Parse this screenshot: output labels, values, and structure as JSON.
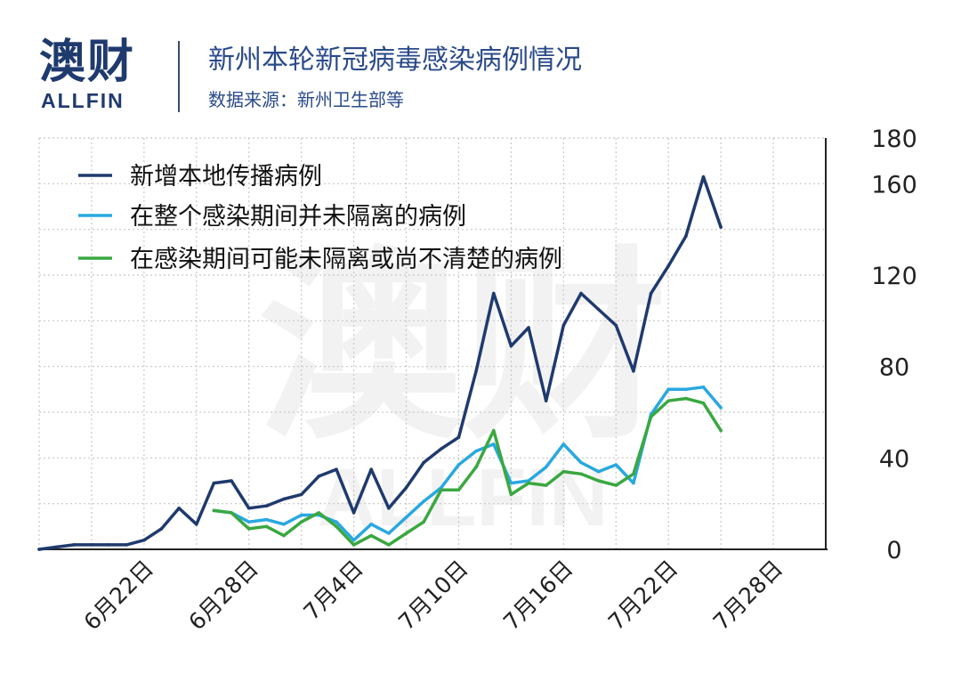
{
  "brand": {
    "logo_cn": "澳财",
    "logo_en": "ALLFIN"
  },
  "header": {
    "title": "新州本轮新冠病毒感染病例情况",
    "subtitle": "数据来源：新州卫生部等"
  },
  "colors": {
    "brand": "#1f3a6e",
    "grid": "#c8c8c8"
  },
  "chart_data": {
    "type": "line",
    "title": "新州本轮新冠病毒感染病例情况",
    "xlabel": "",
    "ylabel": "",
    "x_tick_labels": [
      "6月22日",
      "6月28日",
      "7月4日",
      "7月10日",
      "7月16日",
      "7月22日",
      "7月28日"
    ],
    "y_ticks": [
      0,
      40,
      80,
      120,
      160,
      180
    ],
    "ylim": [
      0,
      180
    ],
    "grid": true,
    "legend_position": "top-left",
    "y_axis_side": "right",
    "x_dates": [
      "6/16",
      "6/17",
      "6/18",
      "6/19",
      "6/20",
      "6/21",
      "6/22",
      "6/23",
      "6/24",
      "6/25",
      "6/26",
      "6/27",
      "6/28",
      "6/29",
      "6/30",
      "7/1",
      "7/2",
      "7/3",
      "7/4",
      "7/5",
      "7/6",
      "7/7",
      "7/8",
      "7/9",
      "7/10",
      "7/11",
      "7/12",
      "7/13",
      "7/14",
      "7/15",
      "7/16",
      "7/17",
      "7/18",
      "7/19",
      "7/20",
      "7/21",
      "7/22",
      "7/23",
      "7/24",
      "7/25",
      "7/26",
      "7/27",
      "7/28",
      "7/29",
      "7/30",
      "7/31"
    ],
    "series": [
      {
        "name": "新增本地传播病例",
        "color": "#1f3a6e",
        "values": [
          0,
          1,
          2,
          2,
          2,
          2,
          4,
          9,
          18,
          11,
          29,
          30,
          18,
          19,
          22,
          24,
          32,
          35,
          16,
          35,
          18,
          27,
          38,
          44,
          49,
          78,
          112,
          89,
          97,
          65,
          98,
          112,
          105,
          98,
          78,
          112,
          124,
          137,
          163,
          141,
          null,
          null,
          null,
          null,
          null,
          null
        ]
      },
      {
        "name": "在整个感染期间并未隔离的病例",
        "color": "#29a8e0",
        "values": [
          null,
          null,
          null,
          null,
          null,
          null,
          null,
          null,
          null,
          null,
          17,
          16,
          12,
          13,
          11,
          15,
          15,
          12,
          4,
          11,
          7,
          14,
          21,
          27,
          37,
          43,
          46,
          29,
          30,
          36,
          46,
          38,
          34,
          37,
          29,
          59,
          70,
          70,
          71,
          62,
          null,
          null,
          null,
          null,
          null,
          null
        ]
      },
      {
        "name": "在感染期间可能未隔离或尚不清楚的病例",
        "color": "#3aa840",
        "values": [
          null,
          null,
          null,
          null,
          null,
          null,
          null,
          null,
          null,
          null,
          17,
          16,
          9,
          10,
          6,
          12,
          16,
          10,
          2,
          6,
          2,
          7,
          12,
          26,
          26,
          36,
          52,
          24,
          29,
          28,
          34,
          33,
          30,
          28,
          33,
          58,
          65,
          66,
          64,
          52,
          null,
          null,
          null,
          null,
          null,
          null
        ]
      }
    ]
  }
}
